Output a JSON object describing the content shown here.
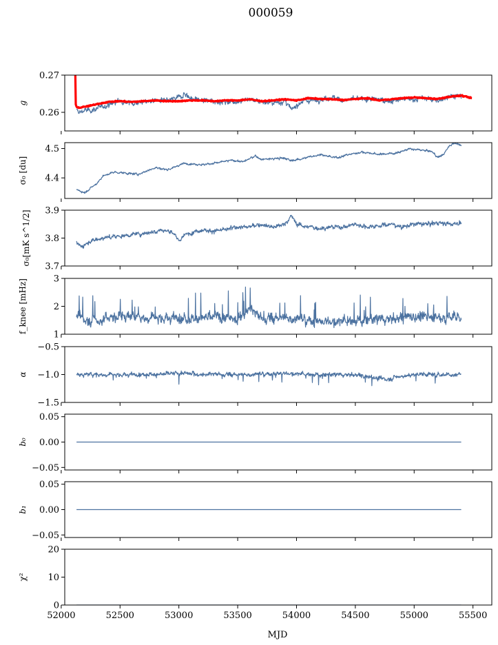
{
  "figure": {
    "title": "000059",
    "xlabel": "MJD"
  },
  "chart_data": [
    {
      "id": "g",
      "type": "line",
      "ylabel": "g",
      "ylim": [
        0.255,
        0.27
      ],
      "yticks": [
        0.26,
        0.27
      ],
      "ytick_labels": [
        "0.26",
        "0.27"
      ],
      "xlim": [
        52030,
        55660
      ],
      "series": [
        {
          "color": "#4c72a0",
          "style": "noisy",
          "x": [
            52130,
            52150,
            52200,
            52250,
            52300,
            52400,
            52500,
            52600,
            52700,
            52800,
            52900,
            53000,
            53050,
            53100,
            53200,
            53300,
            53400,
            53500,
            53600,
            53700,
            53800,
            53900,
            53960,
            54000,
            54050,
            54100,
            54200,
            54300,
            54400,
            54500,
            54600,
            54700,
            54800,
            54900,
            55000,
            55100,
            55200,
            55300,
            55400
          ],
          "y": [
            0.2605,
            0.26,
            0.2605,
            0.2605,
            0.261,
            0.262,
            0.2632,
            0.2625,
            0.2628,
            0.2632,
            0.263,
            0.264,
            0.265,
            0.2638,
            0.2632,
            0.263,
            0.2628,
            0.263,
            0.2635,
            0.263,
            0.2625,
            0.263,
            0.2605,
            0.262,
            0.263,
            0.2632,
            0.2635,
            0.264,
            0.2632,
            0.2635,
            0.2635,
            0.2635,
            0.263,
            0.2635,
            0.2635,
            0.2638,
            0.263,
            0.2645,
            0.2642
          ]
        },
        {
          "color": "#ff0000",
          "style": "thick",
          "x": [
            52120,
            52120,
            52130,
            52150,
            52200,
            52250,
            52300,
            52400,
            52500,
            52600,
            52700,
            52800,
            52900,
            53000,
            53100,
            53200,
            53300,
            53400,
            53500,
            53600,
            53700,
            53800,
            53900,
            54000,
            54100,
            54200,
            54300,
            54400,
            54500,
            54600,
            54700,
            54800,
            54900,
            55000,
            55100,
            55200,
            55300,
            55400,
            55490
          ],
          "y": [
            0.27,
            0.2625,
            0.2615,
            0.2612,
            0.2615,
            0.2618,
            0.2622,
            0.2628,
            0.263,
            0.2628,
            0.263,
            0.2632,
            0.263,
            0.263,
            0.2632,
            0.2632,
            0.263,
            0.2632,
            0.2632,
            0.2635,
            0.263,
            0.2632,
            0.2635,
            0.2632,
            0.2638,
            0.2636,
            0.2635,
            0.2633,
            0.2636,
            0.2638,
            0.2632,
            0.2635,
            0.2638,
            0.264,
            0.2638,
            0.2636,
            0.2642,
            0.2645,
            0.2638
          ]
        }
      ]
    },
    {
      "id": "sigma0-du",
      "type": "line",
      "ylabel": "σ₀ [du]",
      "ylim": [
        4.33,
        4.52
      ],
      "yticks": [
        4.4,
        4.5
      ],
      "ytick_labels": [
        "4.4",
        "4.5"
      ],
      "xlim": [
        52030,
        55660
      ],
      "series": [
        {
          "color": "#4c72a0",
          "style": "noisy",
          "x": [
            52130,
            52200,
            52300,
            52350,
            52450,
            52500,
            52650,
            52800,
            52900,
            52950,
            53050,
            53200,
            53300,
            53450,
            53550,
            53650,
            53700,
            53800,
            53900,
            53950,
            54100,
            54200,
            54300,
            54350,
            54450,
            54550,
            54700,
            54850,
            54950,
            55050,
            55150,
            55200,
            55250,
            55300,
            55350,
            55400
          ],
          "y": [
            4.36,
            4.35,
            4.38,
            4.405,
            4.42,
            4.418,
            4.412,
            4.435,
            4.428,
            4.435,
            4.45,
            4.445,
            4.45,
            4.46,
            4.455,
            4.475,
            4.463,
            4.465,
            4.468,
            4.458,
            4.47,
            4.48,
            4.47,
            4.47,
            4.48,
            4.488,
            4.48,
            4.485,
            4.498,
            4.495,
            4.49,
            4.47,
            4.48,
            4.51,
            4.52,
            4.51
          ]
        }
      ]
    },
    {
      "id": "sigma0-mk",
      "type": "line",
      "ylabel": "σ₀[mK s^1/2]",
      "ylim": [
        3.7,
        3.9
      ],
      "yticks": [
        3.7,
        3.8,
        3.9
      ],
      "ytick_labels": [
        "3.7",
        "3.8",
        "3.9"
      ],
      "xlim": [
        52030,
        55660
      ],
      "series": [
        {
          "color": "#4c72a0",
          "style": "noisy",
          "x": [
            52130,
            52170,
            52250,
            52350,
            52450,
            52550,
            52650,
            52750,
            52850,
            52950,
            53000,
            53050,
            53100,
            53200,
            53300,
            53400,
            53500,
            53600,
            53700,
            53800,
            53900,
            53960,
            54000,
            54100,
            54200,
            54300,
            54400,
            54500,
            54600,
            54700,
            54800,
            54900,
            55000,
            55100,
            55200,
            55300,
            55400
          ],
          "y": [
            3.78,
            3.77,
            3.79,
            3.8,
            3.805,
            3.81,
            3.815,
            3.82,
            3.83,
            3.82,
            3.79,
            3.81,
            3.82,
            3.83,
            3.825,
            3.83,
            3.84,
            3.84,
            3.85,
            3.84,
            3.85,
            3.88,
            3.85,
            3.84,
            3.835,
            3.84,
            3.84,
            3.85,
            3.84,
            3.845,
            3.85,
            3.84,
            3.85,
            3.85,
            3.855,
            3.85,
            3.855
          ]
        }
      ]
    },
    {
      "id": "fknee",
      "type": "line",
      "ylabel": "f_knee [mHz]",
      "ylim": [
        1,
        3
      ],
      "yticks": [
        1,
        2,
        3
      ],
      "ytick_labels": [
        "1",
        "2",
        "3"
      ],
      "xlim": [
        52030,
        55660
      ],
      "series": [
        {
          "color": "#4c72a0",
          "style": "noisy",
          "x": [
            52130,
            52300,
            52500,
            52700,
            52900,
            53100,
            53300,
            53500,
            53600,
            53700,
            53900,
            54100,
            54300,
            54500,
            54700,
            54900,
            55100,
            55300,
            55400
          ],
          "y": [
            1.6,
            1.5,
            1.65,
            1.6,
            1.6,
            1.55,
            1.6,
            1.55,
            1.9,
            1.55,
            1.6,
            1.5,
            1.45,
            1.5,
            1.55,
            1.6,
            1.65,
            1.6,
            1.65
          ]
        }
      ]
    },
    {
      "id": "alpha",
      "type": "line",
      "ylabel": "α",
      "ylim": [
        -1.5,
        -0.5
      ],
      "yticks": [
        -1.5,
        -1.0,
        -0.5
      ],
      "ytick_labels": [
        "−1.5",
        "−1.0",
        "−0.5"
      ],
      "xlim": [
        52030,
        55660
      ],
      "series": [
        {
          "color": "#4c72a0",
          "style": "noisy",
          "x": [
            52130,
            52400,
            52700,
            53000,
            53300,
            53600,
            53900,
            54200,
            54500,
            54760,
            55000,
            55200,
            55400
          ],
          "y": [
            -1.0,
            -1.0,
            -1.0,
            -0.98,
            -1.0,
            -1.0,
            -0.98,
            -1.0,
            -1.0,
            -1.08,
            -1.0,
            -1.0,
            -1.0
          ]
        }
      ]
    },
    {
      "id": "b0",
      "type": "line",
      "ylabel": "b₀",
      "ylim": [
        -0.055,
        0.055
      ],
      "yticks": [
        -0.05,
        0.0,
        0.05
      ],
      "ytick_labels": [
        "−0.05",
        "0.00",
        "0.05"
      ],
      "xlim": [
        52030,
        55660
      ],
      "series": [
        {
          "color": "#4c72a0",
          "style": "flat",
          "x": [
            52130,
            55400
          ],
          "y": [
            0,
            0
          ]
        }
      ]
    },
    {
      "id": "b1",
      "type": "line",
      "ylabel": "b₁",
      "ylim": [
        -0.055,
        0.055
      ],
      "yticks": [
        -0.05,
        0.0,
        0.05
      ],
      "ytick_labels": [
        "−0.05",
        "0.00",
        "0.05"
      ],
      "xlim": [
        52030,
        55660
      ],
      "series": [
        {
          "color": "#4c72a0",
          "style": "flat",
          "x": [
            52130,
            55400
          ],
          "y": [
            0,
            0
          ]
        }
      ]
    },
    {
      "id": "chi2",
      "type": "line",
      "ylabel": "χ²",
      "ylim": [
        0,
        20
      ],
      "yticks": [
        0,
        10,
        20
      ],
      "ytick_labels": [
        "0",
        "10",
        "20"
      ],
      "xlim": [
        52030,
        55660
      ],
      "xticks": [
        52000,
        52500,
        53000,
        53500,
        54000,
        54500,
        55000,
        55500
      ],
      "xtick_labels": [
        "52000",
        "52500",
        "53000",
        "53500",
        "54000",
        "54500",
        "55000",
        "55500"
      ],
      "series": [
        {
          "color": "#4c72a0",
          "style": "flat",
          "x": [
            52130,
            55400
          ],
          "y": [
            0,
            0
          ]
        }
      ]
    }
  ]
}
